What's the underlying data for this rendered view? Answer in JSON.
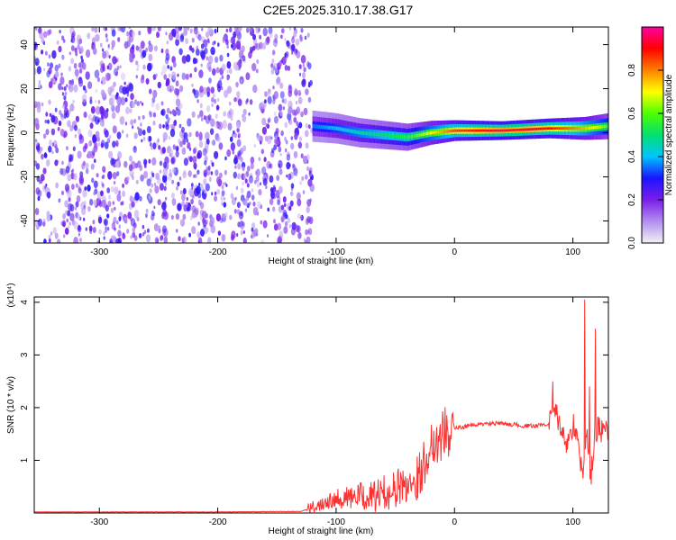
{
  "title": "C2E5.2025.310.17.38.G17",
  "chart_data": [
    {
      "type": "heatmap",
      "xlabel": "Height of straight line (km)",
      "ylabel": "Frequency (Hz)",
      "xlim": [
        -355,
        130
      ],
      "ylim": [
        -50,
        48
      ],
      "xticks": [
        -300,
        -200,
        -100,
        0,
        100
      ],
      "yticks": [
        -40,
        -20,
        0,
        20,
        40
      ],
      "colorbar": {
        "label": "Normalized spectral amplitude",
        "range": [
          0,
          1
        ],
        "ticks": [
          "0.0",
          "0.2",
          "0.4",
          "0.6",
          "0.8"
        ],
        "colors": [
          "#f2f2f2",
          "#b28ef0",
          "#7a1ee8",
          "#1a14ff",
          "#00c4ff",
          "#00e070",
          "#4dff00",
          "#ffff00",
          "#ff8000",
          "#ff0000",
          "#ff00a0"
        ]
      },
      "noise_region_x": [
        -355,
        -120
      ],
      "signal_band": [
        {
          "x": -120,
          "f": 3,
          "amp": 0.35
        },
        {
          "x": -100,
          "f": 2,
          "amp": 0.4
        },
        {
          "x": -80,
          "f": 0,
          "amp": 0.45
        },
        {
          "x": -60,
          "f": -1,
          "amp": 0.5
        },
        {
          "x": -40,
          "f": -2,
          "amp": 0.55
        },
        {
          "x": -20,
          "f": 0,
          "amp": 0.7
        },
        {
          "x": 0,
          "f": 1,
          "amp": 0.85
        },
        {
          "x": 40,
          "f": 1,
          "amp": 0.95
        },
        {
          "x": 80,
          "f": 2,
          "amp": 0.9
        },
        {
          "x": 110,
          "f": 2,
          "amp": 0.75
        },
        {
          "x": 130,
          "f": 3,
          "amp": 0.6
        }
      ]
    },
    {
      "type": "line",
      "xlabel": "Height of straight line (km)",
      "ylabel": "SNR (10 * v/v)",
      "scale_label": "(x10⁴)",
      "xlim": [
        -355,
        130
      ],
      "ylim": [
        0,
        4.1
      ],
      "xticks": [
        -300,
        -200,
        -100,
        0,
        100
      ],
      "yticks": [
        1,
        2,
        3,
        4
      ],
      "series": [
        {
          "color": "#ff3030",
          "x": [
            -355,
            -300,
            -200,
            -130,
            -120,
            -110,
            -100,
            -90,
            -80,
            -70,
            -60,
            -50,
            -40,
            -30,
            -25,
            -20,
            -15,
            -10,
            -5,
            0,
            10,
            20,
            30,
            40,
            50,
            60,
            70,
            80,
            85,
            90,
            95,
            100,
            105,
            108,
            110,
            112,
            115,
            118,
            120,
            125,
            130
          ],
          "y": [
            0.02,
            0.02,
            0.02,
            0.03,
            0.1,
            0.22,
            0.3,
            0.28,
            0.32,
            0.3,
            0.38,
            0.45,
            0.55,
            0.7,
            1.0,
            1.3,
            1.4,
            1.5,
            1.55,
            1.6,
            1.65,
            1.68,
            1.7,
            1.7,
            1.68,
            1.65,
            1.66,
            1.7,
            1.9,
            1.6,
            1.3,
            1.7,
            1.2,
            0.8,
            1.0,
            1.6,
            0.6,
            1.4,
            1.6,
            1.55,
            1.6
          ]
        }
      ]
    }
  ]
}
